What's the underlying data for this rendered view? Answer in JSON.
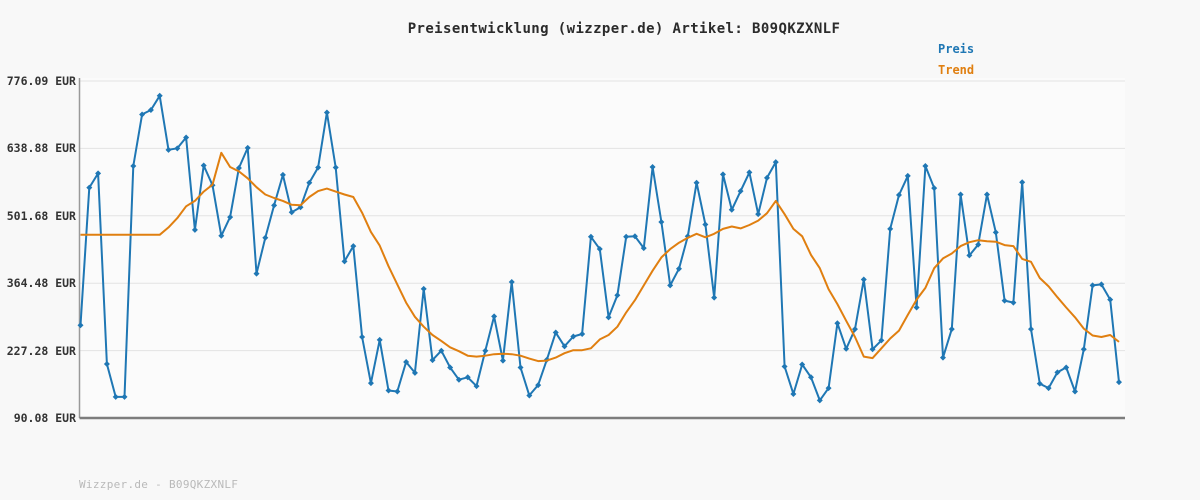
{
  "title": "Preisentwicklung (wizzper.de) Artikel: B09QKZXNLF",
  "footer": "Wizzper.de - B09QKZXNLF",
  "legend": {
    "preis": {
      "label": "Preis",
      "color": "#1f77b4"
    },
    "trend": {
      "label": "Trend",
      "color": "#e07f10"
    }
  },
  "colors": {
    "page_background": "#f8f8f8",
    "plot_background": "#fbfbfb",
    "grid": "#e3e3e3",
    "axis": "#999999",
    "axis_bottom": "#7d7d7d",
    "price_line": "#1f77b4",
    "trend_line": "#e07f10",
    "tick_text": "#333333",
    "footer_text": "#b9b9b9"
  },
  "chart_data": {
    "type": "line",
    "title": "Preisentwicklung (wizzper.de) Artikel: B09QKZXNLF",
    "xlabel": "",
    "ylabel": "EUR",
    "ylim": [
      90.08,
      776.09
    ],
    "grid": true,
    "legend_position": "top-right",
    "y_ticks": [
      {
        "value": 776.09,
        "label": "776.09 EUR"
      },
      {
        "value": 638.88,
        "label": "638.88 EUR"
      },
      {
        "value": 501.68,
        "label": "501.68 EUR"
      },
      {
        "value": 364.48,
        "label": "364.48 EUR"
      },
      {
        "value": 227.28,
        "label": "227.28 EUR"
      },
      {
        "value": 90.08,
        "label": "90.08 EUR"
      }
    ],
    "series": [
      {
        "name": "Preis",
        "color": "#1f77b4",
        "markers": true,
        "values": [
          279,
          559,
          588,
          200,
          133,
          133,
          603,
          708,
          717,
          746,
          636,
          639,
          661,
          473,
          604,
          564,
          461,
          499,
          599,
          640,
          384,
          457,
          523,
          585,
          509,
          519,
          569,
          600,
          712,
          600,
          409,
          440,
          255,
          161,
          249,
          146,
          144,
          204,
          182,
          353,
          208,
          227,
          193,
          168,
          173,
          155,
          227,
          297,
          207,
          367,
          193,
          136,
          157,
          209,
          264,
          236,
          256,
          261,
          459,
          434,
          295,
          340,
          459,
          460,
          436,
          601,
          489,
          360,
          394,
          460,
          569,
          484,
          335,
          586,
          514,
          552,
          590,
          505,
          579,
          611,
          195,
          139,
          199,
          173,
          126,
          151,
          283,
          231,
          271,
          372,
          230,
          248,
          475,
          544,
          583,
          315,
          603,
          558,
          213,
          271,
          545,
          421,
          443,
          545,
          468,
          329,
          325,
          570,
          271,
          160,
          151,
          183,
          193,
          144,
          230,
          360,
          362,
          331,
          163
        ]
      },
      {
        "name": "Trend",
        "color": "#e07f10",
        "markers": false,
        "values": [
          463,
          463,
          463,
          463,
          463,
          463,
          463,
          463,
          463,
          463,
          478,
          497,
          521,
          532,
          551,
          565,
          630,
          601,
          592,
          578,
          560,
          545,
          538,
          532,
          524,
          523,
          540,
          552,
          557,
          551,
          545,
          540,
          508,
          469,
          441,
          399,
          362,
          325,
          296,
          276,
          259,
          247,
          234,
          226,
          217,
          215,
          217,
          220,
          221,
          220,
          217,
          211,
          206,
          207,
          213,
          222,
          228,
          228,
          232,
          250,
          259,
          276,
          305,
          330,
          360,
          390,
          417,
          434,
          447,
          457,
          465,
          458,
          465,
          475,
          480,
          476,
          483,
          492,
          507,
          532,
          505,
          475,
          460,
          422,
          395,
          352,
          322,
          288,
          255,
          215,
          212,
          232,
          252,
          268,
          300,
          331,
          355,
          395,
          415,
          425,
          440,
          448,
          452,
          450,
          449,
          442,
          440,
          414,
          408,
          375,
          358,
          336,
          315,
          295,
          272,
          258,
          255,
          259,
          245
        ]
      }
    ]
  }
}
